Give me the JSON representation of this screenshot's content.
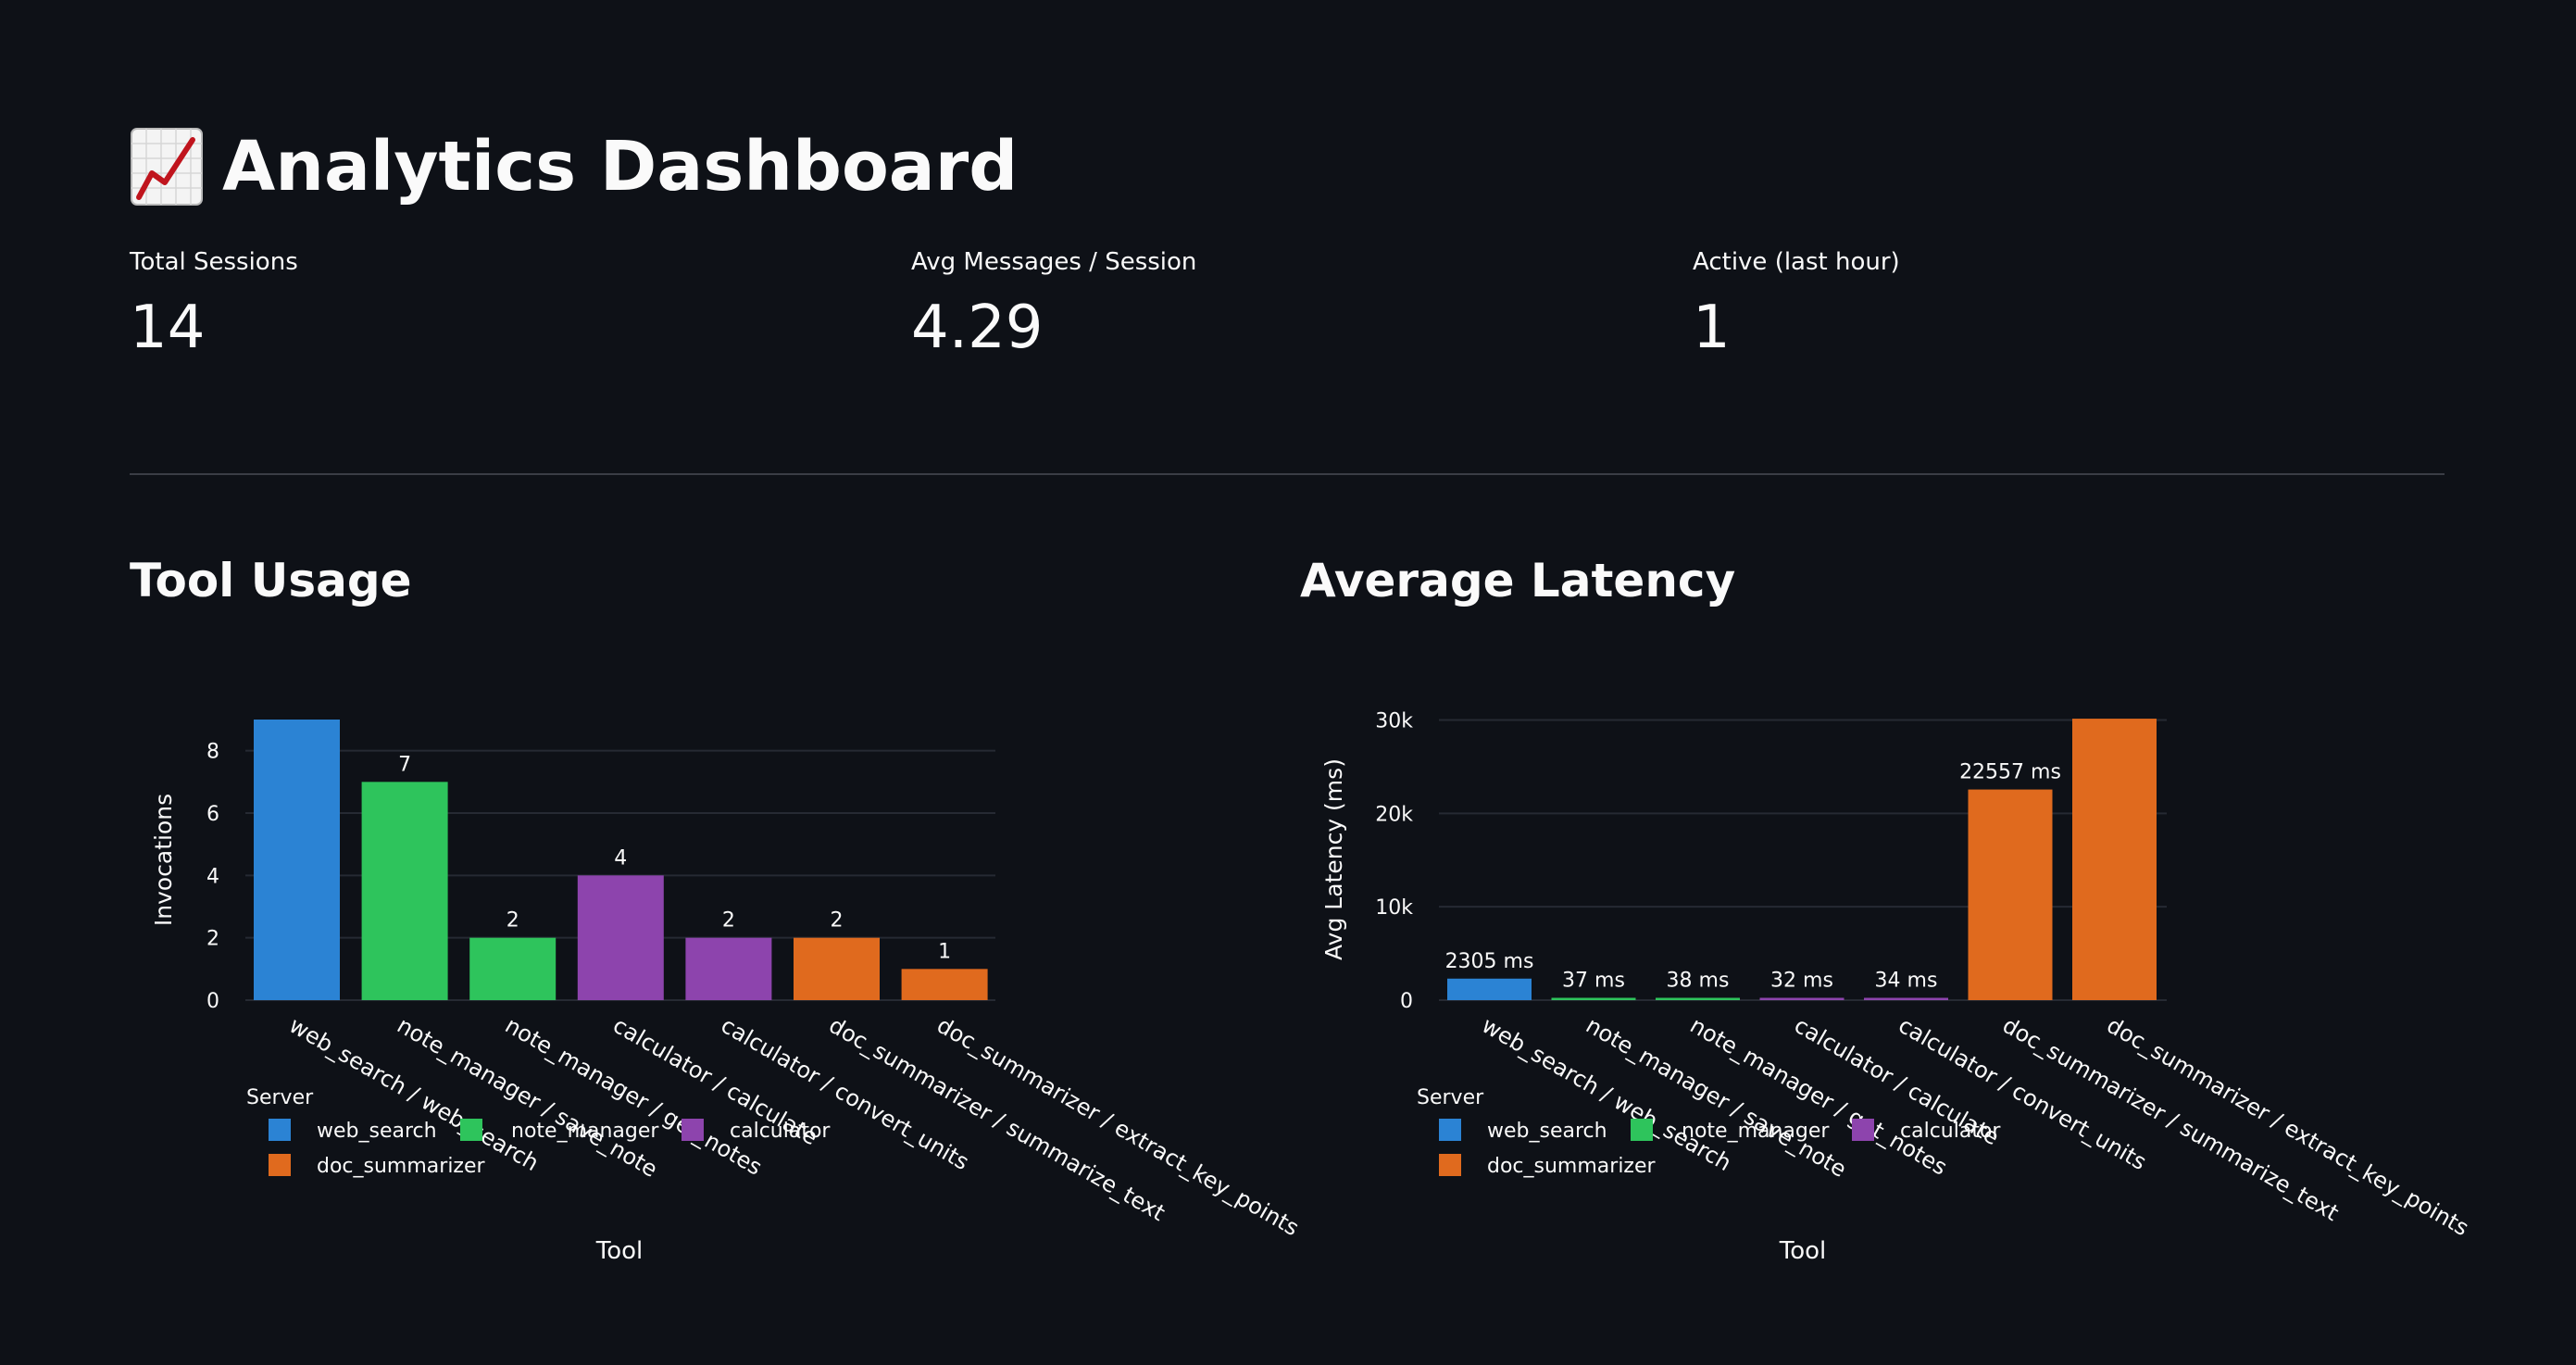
{
  "header": {
    "title": "Analytics Dashboard",
    "icon": "chart-increasing-icon"
  },
  "metrics": [
    {
      "label": "Total Sessions",
      "value": "14"
    },
    {
      "label": "Avg Messages / Session",
      "value": "4.29"
    },
    {
      "label": "Active (last hour)",
      "value": "1"
    }
  ],
  "sections": {
    "tool_usage": "Tool Usage",
    "avg_latency": "Average Latency"
  },
  "server_colors": {
    "web_search": "#2b83d4",
    "note_manager": "#2ec45c",
    "calculator": "#8d44ad",
    "doc_summarizer": "#e06a1e"
  },
  "chart_data": [
    {
      "type": "bar",
      "title": "",
      "xlabel": "Tool",
      "ylabel": "Invocations",
      "ylim": [
        0,
        9
      ],
      "yticks": [
        "0",
        "2",
        "4",
        "6",
        "8"
      ],
      "legend_title": "Server",
      "legend_placement": "bottom-left",
      "legend": [
        "web_search",
        "note_manager",
        "calculator",
        "doc_summarizer"
      ],
      "grid": true,
      "categories": [
        "web_search / web_search",
        "note_manager / save_note",
        "note_manager / get_notes",
        "calculator / calculate",
        "calculator / convert_units",
        "doc_summarizer / summarize_text",
        "doc_summarizer / extract_key_points"
      ],
      "servers": [
        "web_search",
        "note_manager",
        "note_manager",
        "calculator",
        "calculator",
        "doc_summarizer",
        "doc_summarizer"
      ],
      "values": [
        9,
        7,
        2,
        4,
        2,
        2,
        1
      ],
      "labels": [
        "9",
        "7",
        "2",
        "4",
        "2",
        "2",
        "1"
      ]
    },
    {
      "type": "bar",
      "title": "",
      "xlabel": "Tool",
      "ylabel": "Avg Latency (ms)",
      "ylim": [
        0,
        30150
      ],
      "yticks": [
        "0",
        "10k",
        "20k",
        "30k"
      ],
      "legend_title": "Server",
      "legend_placement": "bottom-left",
      "legend": [
        "web_search",
        "note_manager",
        "calculator",
        "doc_summarizer"
      ],
      "grid": true,
      "categories": [
        "web_search / web_search",
        "note_manager / save_note",
        "note_manager / get_notes",
        "calculator / calculate",
        "calculator / convert_units",
        "doc_summarizer / summarize_text",
        "doc_summarizer / extract_key_points"
      ],
      "servers": [
        "web_search",
        "note_manager",
        "note_manager",
        "calculator",
        "calculator",
        "doc_summarizer",
        "doc_summarizer"
      ],
      "values": [
        2305,
        37,
        38,
        32,
        34,
        22557,
        30143
      ],
      "labels": [
        "2305 ms",
        "37 ms",
        "38 ms",
        "32 ms",
        "34 ms",
        "22557 ms",
        "30143 ms"
      ]
    }
  ]
}
